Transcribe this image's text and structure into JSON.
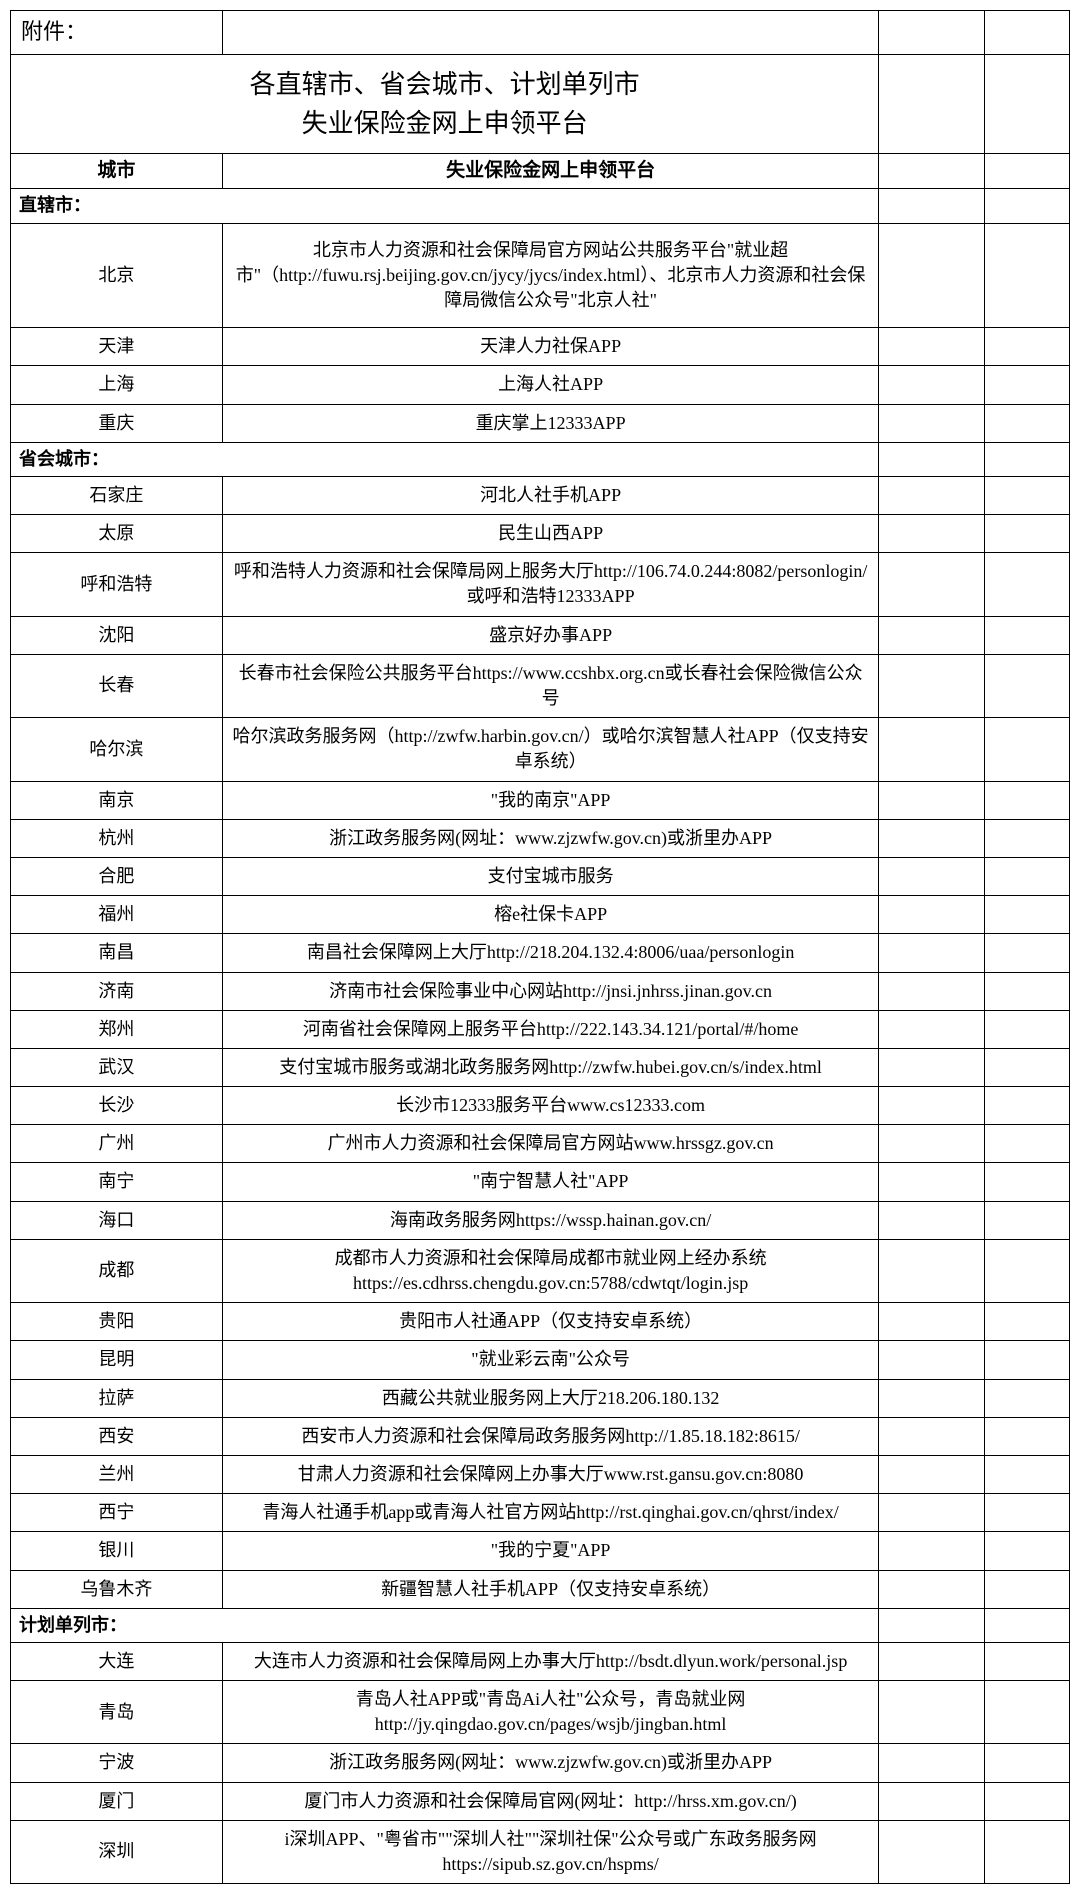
{
  "attachment_label": "附件：",
  "title_line1": "各直辖市、省会城市、计划单列市",
  "title_line2": "失业保险金网上申领平台",
  "headers": {
    "city": "城市",
    "platform": "失业保险金网上申领平台"
  },
  "sections": {
    "municipalities": "直辖市：",
    "provincial_capitals": "省会城市：",
    "separate_planning": "计划单列市："
  },
  "municipalities_rows": [
    {
      "city": "北京",
      "platform": "北京市人力资源和社会保障局官方网站公共服务平台\"就业超市\"（http://fuwu.rsj.beijing.gov.cn/jycy/jycs/index.html）、北京市人力资源和社会保障局微信公众号\"北京人社\"",
      "tall": true
    },
    {
      "city": "天津",
      "platform": "天津人力社保APP"
    },
    {
      "city": "上海",
      "platform": "上海人社APP"
    },
    {
      "city": "重庆",
      "platform": "重庆掌上12333APP"
    }
  ],
  "provincial_rows": [
    {
      "city": "石家庄",
      "platform": "河北人社手机APP"
    },
    {
      "city": "太原",
      "platform": "民生山西APP"
    },
    {
      "city": "呼和浩特",
      "platform": "呼和浩特人力资源和社会保障局网上服务大厅http://106.74.0.244:8082/personlogin/或呼和浩特12333APP"
    },
    {
      "city": "沈阳",
      "platform": "盛京好办事APP"
    },
    {
      "city": "长春",
      "platform": "长春市社会保险公共服务平台https://www.ccshbx.org.cn或长春社会保险微信公众号"
    },
    {
      "city": "哈尔滨",
      "platform": "哈尔滨政务服务网（http://zwfw.harbin.gov.cn/）或哈尔滨智慧人社APP（仅支持安卓系统）"
    },
    {
      "city": "南京",
      "platform": "\"我的南京\"APP"
    },
    {
      "city": "杭州",
      "platform": "浙江政务服务网(网址：www.zjzwfw.gov.cn)或浙里办APP"
    },
    {
      "city": "合肥",
      "platform": "支付宝城市服务"
    },
    {
      "city": "福州",
      "platform": "榕e社保卡APP"
    },
    {
      "city": "南昌",
      "platform": "南昌社会保障网上大厅http://218.204.132.4:8006/uaa/personlogin"
    },
    {
      "city": "济南",
      "platform": "济南市社会保险事业中心网站http://jnsi.jnhrss.jinan.gov.cn"
    },
    {
      "city": "郑州",
      "platform": "河南省社会保障网上服务平台http://222.143.34.121/portal/#/home"
    },
    {
      "city": "武汉",
      "platform": "支付宝城市服务或湖北政务服务网http://zwfw.hubei.gov.cn/s/index.html"
    },
    {
      "city": "长沙",
      "platform": "长沙市12333服务平台www.cs12333.com"
    },
    {
      "city": "广州",
      "platform": "广州市人力资源和社会保障局官方网站www.hrssgz.gov.cn"
    },
    {
      "city": "南宁",
      "platform": "\"南宁智慧人社\"APP"
    },
    {
      "city": "海口",
      "platform": "海南政务服务网https://wssp.hainan.gov.cn/"
    },
    {
      "city": "成都",
      "platform": "成都市人力资源和社会保障局成都市就业网上经办系统https://es.cdhrss.chengdu.gov.cn:5788/cdwtqt/login.jsp"
    },
    {
      "city": "贵阳",
      "platform": "贵阳市人社通APP（仅支持安卓系统）"
    },
    {
      "city": "昆明",
      "platform": "\"就业彩云南\"公众号"
    },
    {
      "city": "拉萨",
      "platform": "西藏公共就业服务网上大厅218.206.180.132"
    },
    {
      "city": "西安",
      "platform": "西安市人力资源和社会保障局政务服务网http://1.85.18.182:8615/"
    },
    {
      "city": "兰州",
      "platform": "甘肃人力资源和社会保障网上办事大厅www.rst.gansu.gov.cn:8080"
    },
    {
      "city": "西宁",
      "platform": "青海人社通手机app或青海人社官方网站http://rst.qinghai.gov.cn/qhrst/index/"
    },
    {
      "city": "银川",
      "platform": "\"我的宁夏\"APP"
    },
    {
      "city": "乌鲁木齐",
      "platform": "新疆智慧人社手机APP（仅支持安卓系统）"
    }
  ],
  "separate_rows": [
    {
      "city": "大连",
      "platform": "大连市人力资源和社会保障局网上办事大厅http://bsdt.dlyun.work/personal.jsp"
    },
    {
      "city": "青岛",
      "platform": "青岛人社APP或\"青岛Ai人社\"公众号，青岛就业网http://jy.qingdao.gov.cn/pages/wsjb/jingban.html"
    },
    {
      "city": "宁波",
      "platform": "浙江政务服务网(网址：www.zjzwfw.gov.cn)或浙里办APP"
    },
    {
      "city": "厦门",
      "platform": "厦门市人力资源和社会保障局官网(网址：http://hrss.xm.gov.cn/)"
    },
    {
      "city": "深圳",
      "platform": "i深圳APP、\"粤省市\"\"深圳人社\"\"深圳社保\"公众号或广东政务服务网https://sipub.sz.gov.cn/hspms/"
    }
  ]
}
